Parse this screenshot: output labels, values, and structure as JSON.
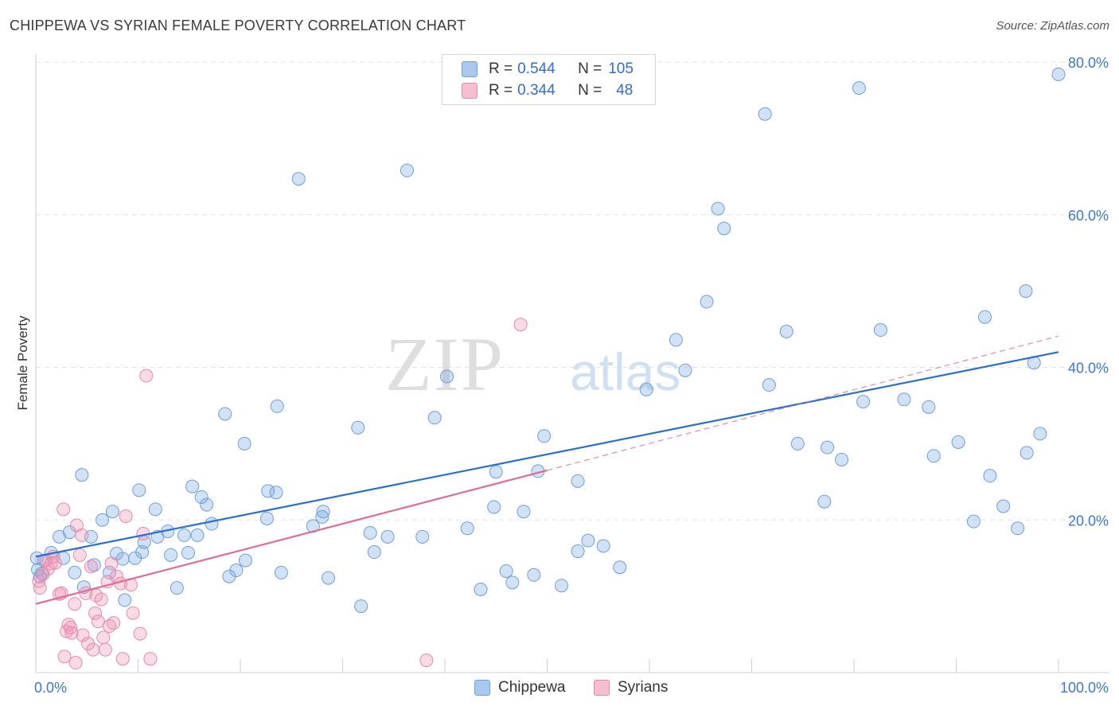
{
  "title": "CHIPPEWA VS SYRIAN FEMALE POVERTY CORRELATION CHART",
  "source": "Source: ZipAtlas.com",
  "watermark": {
    "zip": "ZIP",
    "atlas": "atlas"
  },
  "legend_top": [
    {
      "r_label": "R = ",
      "r_value": "0.544",
      "n_label": "N = ",
      "n_value": "105",
      "color": "#a9c8f0",
      "border": "#6d9fdc"
    },
    {
      "r_label": "R = ",
      "r_value": "0.344",
      "n_label": "N = ",
      "n_value": "48",
      "color": "#f6bfd0",
      "border": "#e889a6"
    }
  ],
  "legend_bottom": [
    {
      "label": "Chippewa",
      "color": "#a9c8f0",
      "border": "#6d9fdc"
    },
    {
      "label": "Syrians",
      "color": "#f6bfd0",
      "border": "#e889a6"
    }
  ],
  "colors": {
    "chippewa_fill": "rgba(122,170,230,0.35)",
    "chippewa_stroke": "#6d9fdc",
    "chippewa_line": "#2a6fcf",
    "syrian_fill": "rgba(240,150,180,0.35)",
    "syrian_stroke": "#e889a6",
    "syrian_line": "#e06b93",
    "axis_label": "#3b78d0",
    "grid": "#e3e3e3"
  },
  "chart_data": {
    "type": "scatter",
    "xlabel": "",
    "ylabel": "Female Poverty",
    "xlim": [
      0,
      100
    ],
    "ylim": [
      0,
      80
    ],
    "x_tick_labels": [
      {
        "value": 0,
        "label": "0.0%"
      },
      {
        "value": 100,
        "label": "100.0%"
      }
    ],
    "y_tick_labels": [
      {
        "value": 20,
        "label": "20.0%"
      },
      {
        "value": 40,
        "label": "40.0%"
      },
      {
        "value": 60,
        "label": "60.0%"
      },
      {
        "value": 80,
        "label": "80.0%"
      }
    ],
    "y_gridlines": [
      20,
      40,
      60,
      80
    ],
    "grid": "horizontal dashed",
    "series": [
      {
        "name": "Chippewa",
        "trend": {
          "x": [
            0,
            100
          ],
          "y": [
            15.2,
            42.0
          ],
          "style": "solid"
        },
        "points": [
          [
            0.1,
            15.0
          ],
          [
            0.2,
            13.5
          ],
          [
            0.4,
            12.6
          ],
          [
            0.6,
            13.0
          ],
          [
            0.8,
            14.7
          ],
          [
            1.5,
            15.7
          ],
          [
            2.3,
            17.8
          ],
          [
            2.7,
            15.0
          ],
          [
            3.3,
            18.4
          ],
          [
            3.8,
            13.1
          ],
          [
            4.5,
            25.9
          ],
          [
            4.7,
            11.2
          ],
          [
            5.4,
            17.8
          ],
          [
            5.7,
            14.1
          ],
          [
            6.5,
            20.0
          ],
          [
            7.2,
            13.1
          ],
          [
            7.5,
            21.1
          ],
          [
            7.9,
            15.6
          ],
          [
            8.5,
            14.9
          ],
          [
            8.7,
            9.5
          ],
          [
            9.7,
            15.0
          ],
          [
            10.1,
            23.9
          ],
          [
            10.4,
            15.8
          ],
          [
            10.6,
            17.1
          ],
          [
            11.7,
            21.4
          ],
          [
            11.9,
            17.8
          ],
          [
            12.9,
            18.5
          ],
          [
            13.2,
            15.4
          ],
          [
            13.8,
            11.1
          ],
          [
            14.5,
            18.0
          ],
          [
            14.9,
            15.7
          ],
          [
            15.3,
            24.4
          ],
          [
            15.8,
            18.0
          ],
          [
            16.2,
            23.0
          ],
          [
            16.7,
            22.0
          ],
          [
            17.2,
            19.5
          ],
          [
            18.5,
            33.9
          ],
          [
            18.9,
            12.6
          ],
          [
            19.6,
            13.4
          ],
          [
            20.4,
            30.0
          ],
          [
            20.5,
            14.7
          ],
          [
            22.6,
            20.2
          ],
          [
            22.7,
            23.8
          ],
          [
            23.5,
            23.6
          ],
          [
            23.6,
            34.9
          ],
          [
            24.0,
            13.1
          ],
          [
            25.7,
            64.7
          ],
          [
            27.1,
            19.2
          ],
          [
            28.0,
            20.4
          ],
          [
            28.1,
            21.1
          ],
          [
            28.6,
            12.4
          ],
          [
            31.5,
            32.1
          ],
          [
            31.8,
            8.7
          ],
          [
            32.7,
            18.3
          ],
          [
            33.1,
            15.8
          ],
          [
            34.4,
            17.8
          ],
          [
            36.3,
            65.8
          ],
          [
            37.8,
            17.8
          ],
          [
            39.0,
            33.4
          ],
          [
            40.2,
            38.8
          ],
          [
            42.2,
            18.9
          ],
          [
            43.5,
            10.9
          ],
          [
            44.8,
            21.7
          ],
          [
            45.0,
            26.3
          ],
          [
            46.0,
            13.3
          ],
          [
            46.6,
            11.8
          ],
          [
            47.7,
            21.1
          ],
          [
            48.7,
            12.8
          ],
          [
            49.1,
            26.4
          ],
          [
            49.7,
            31.0
          ],
          [
            51.4,
            11.4
          ],
          [
            53.0,
            25.1
          ],
          [
            53.0,
            15.9
          ],
          [
            54.0,
            17.3
          ],
          [
            55.5,
            16.6
          ],
          [
            57.1,
            13.8
          ],
          [
            59.7,
            37.1
          ],
          [
            62.6,
            43.6
          ],
          [
            63.5,
            39.6
          ],
          [
            65.6,
            48.6
          ],
          [
            66.7,
            60.8
          ],
          [
            67.3,
            58.2
          ],
          [
            71.3,
            73.2
          ],
          [
            71.7,
            37.7
          ],
          [
            73.4,
            44.7
          ],
          [
            74.5,
            30.0
          ],
          [
            77.1,
            22.4
          ],
          [
            77.4,
            29.5
          ],
          [
            78.8,
            27.9
          ],
          [
            80.5,
            76.6
          ],
          [
            80.9,
            35.5
          ],
          [
            82.6,
            44.9
          ],
          [
            84.9,
            35.8
          ],
          [
            87.3,
            34.8
          ],
          [
            87.8,
            28.4
          ],
          [
            90.2,
            30.2
          ],
          [
            91.7,
            19.8
          ],
          [
            92.8,
            46.6
          ],
          [
            93.3,
            25.8
          ],
          [
            94.6,
            21.8
          ],
          [
            96.0,
            18.9
          ],
          [
            96.8,
            50.0
          ],
          [
            96.9,
            28.8
          ],
          [
            97.6,
            40.6
          ],
          [
            98.2,
            31.3
          ],
          [
            100.0,
            78.4
          ]
        ]
      },
      {
        "name": "Syrians",
        "trend": {
          "x": [
            0,
            50
          ],
          "y": [
            9.0,
            26.5
          ],
          "style": "solid",
          "extension": {
            "x": [
              50,
              100
            ],
            "y": [
              26.5,
              44.1
            ],
            "style": "dashed"
          }
        },
        "points": [
          [
            0.3,
            12.0
          ],
          [
            0.4,
            11.1
          ],
          [
            0.7,
            12.9
          ],
          [
            1.0,
            14.7
          ],
          [
            1.2,
            13.6
          ],
          [
            1.5,
            14.3
          ],
          [
            1.7,
            15.2
          ],
          [
            1.9,
            14.4
          ],
          [
            2.3,
            10.3
          ],
          [
            2.5,
            10.4
          ],
          [
            2.7,
            21.4
          ],
          [
            2.8,
            2.1
          ],
          [
            3.0,
            5.4
          ],
          [
            3.2,
            6.3
          ],
          [
            3.4,
            5.9
          ],
          [
            3.5,
            5.2
          ],
          [
            3.8,
            9.0
          ],
          [
            3.9,
            1.3
          ],
          [
            4.0,
            19.3
          ],
          [
            4.3,
            15.4
          ],
          [
            4.5,
            18.0
          ],
          [
            4.6,
            4.9
          ],
          [
            4.9,
            10.4
          ],
          [
            5.1,
            3.8
          ],
          [
            5.4,
            13.9
          ],
          [
            5.6,
            3.0
          ],
          [
            5.8,
            7.8
          ],
          [
            5.9,
            10.1
          ],
          [
            6.1,
            6.7
          ],
          [
            6.4,
            9.6
          ],
          [
            6.6,
            4.6
          ],
          [
            6.8,
            3.0
          ],
          [
            7.0,
            11.9
          ],
          [
            7.2,
            6.1
          ],
          [
            7.4,
            14.3
          ],
          [
            7.6,
            6.5
          ],
          [
            7.9,
            12.6
          ],
          [
            8.3,
            11.7
          ],
          [
            8.5,
            1.8
          ],
          [
            8.8,
            20.5
          ],
          [
            9.3,
            11.5
          ],
          [
            9.5,
            7.8
          ],
          [
            10.2,
            5.1
          ],
          [
            10.5,
            18.2
          ],
          [
            10.8,
            38.9
          ],
          [
            11.2,
            1.8
          ],
          [
            38.2,
            1.6
          ],
          [
            47.4,
            45.6
          ]
        ]
      }
    ]
  }
}
